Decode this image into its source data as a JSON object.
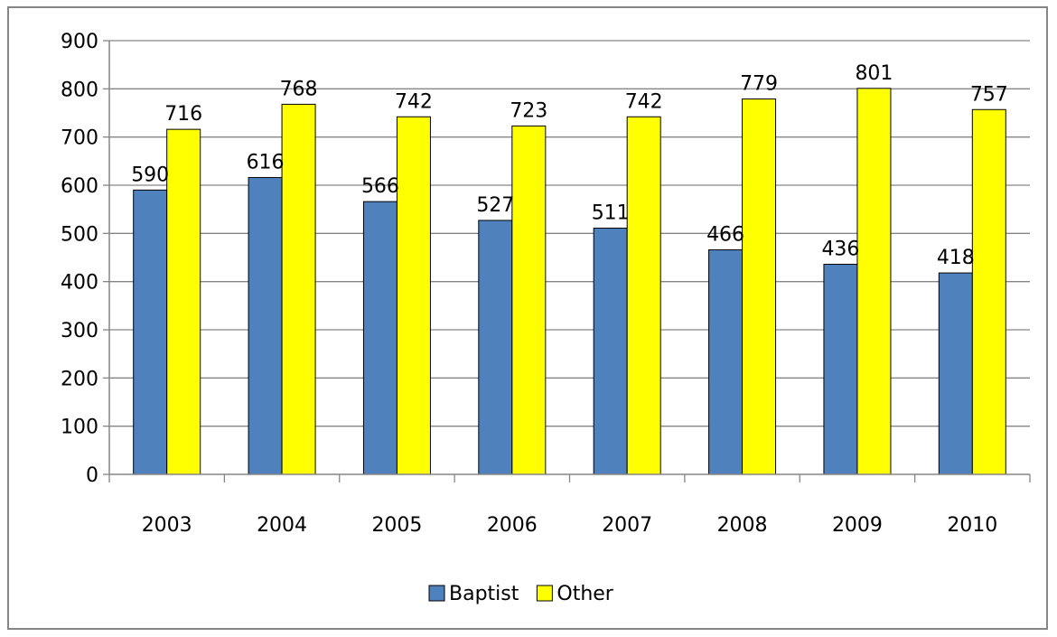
{
  "chart_data": {
    "type": "bar",
    "title": "",
    "xlabel": "",
    "ylabel": "",
    "categories": [
      "2003",
      "2004",
      "2005",
      "2006",
      "2007",
      "2008",
      "2009",
      "2010"
    ],
    "series": [
      {
        "name": "Baptist",
        "color": "#4f81bd",
        "values": [
          590,
          616,
          566,
          527,
          511,
          466,
          436,
          418
        ]
      },
      {
        "name": "Other",
        "color": "#ffff00",
        "values": [
          716,
          768,
          742,
          723,
          742,
          779,
          801,
          757
        ]
      }
    ],
    "ylim": [
      0,
      900
    ],
    "yticks": [
      "0",
      "100",
      "200",
      "300",
      "400",
      "500",
      "600",
      "700",
      "800",
      "900"
    ],
    "grid": true,
    "legend_position": "bottom",
    "data_labels": true
  }
}
